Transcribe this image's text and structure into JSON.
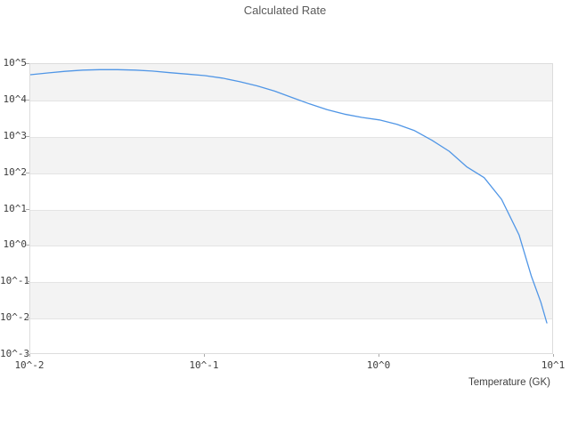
{
  "chart": {
    "title": "Calculated Rate",
    "xlabel": "Temperature (GK)"
  },
  "colors": {
    "line": "#5096e6",
    "band": "#f3f3f3",
    "grid": "#e4e4e4",
    "border": "#dcdcdc",
    "tick_mark": "#aaaaaa",
    "title_text": "#5a5a5a",
    "tick_text": "#3d3d3d"
  },
  "chart_data": {
    "type": "line",
    "title": "Calculated Rate",
    "xlabel": "Temperature (GK)",
    "ylabel": "",
    "x_scale": "log",
    "y_scale": "log",
    "xlim": [
      0.01,
      10
    ],
    "ylim": [
      0.001,
      100000
    ],
    "x_tick_values": [
      0.01,
      0.1,
      1,
      10
    ],
    "x_tick_labels": [
      "10^-2",
      "10^-1",
      "10^0",
      "10^1"
    ],
    "y_tick_values": [
      100000,
      10000,
      1000,
      100,
      10,
      1,
      0.1,
      0.01,
      0.001
    ],
    "y_tick_labels": [
      "10^5",
      "10^4",
      "10^3",
      "10^2",
      "10^1",
      "10^0",
      "10^-1",
      "10^-2",
      "10^-3"
    ],
    "grid": "alternating-horizontal-bands",
    "legend": "none",
    "series": [
      {
        "name": "calculated-rate",
        "color": "#5096e6",
        "points": [
          [
            0.01,
            51000
          ],
          [
            0.0126,
            57000
          ],
          [
            0.0158,
            63000
          ],
          [
            0.02,
            68000
          ],
          [
            0.025,
            70000
          ],
          [
            0.0316,
            70000
          ],
          [
            0.04,
            68000
          ],
          [
            0.05,
            64000
          ],
          [
            0.063,
            58000
          ],
          [
            0.0794,
            53000
          ],
          [
            0.1,
            48000
          ],
          [
            0.126,
            41000
          ],
          [
            0.158,
            33000
          ],
          [
            0.2,
            25000
          ],
          [
            0.251,
            18000
          ],
          [
            0.316,
            12000
          ],
          [
            0.398,
            8000
          ],
          [
            0.501,
            5600
          ],
          [
            0.631,
            4200
          ],
          [
            0.794,
            3400
          ],
          [
            1.0,
            2900
          ],
          [
            1.26,
            2200
          ],
          [
            1.58,
            1500
          ],
          [
            2.0,
            800
          ],
          [
            2.51,
            400
          ],
          [
            3.16,
            150
          ],
          [
            3.98,
            75
          ],
          [
            5.01,
            19
          ],
          [
            6.31,
            2.0
          ],
          [
            7.41,
            0.15
          ],
          [
            8.41,
            0.028
          ],
          [
            9.1,
            0.0076
          ]
        ]
      }
    ]
  }
}
